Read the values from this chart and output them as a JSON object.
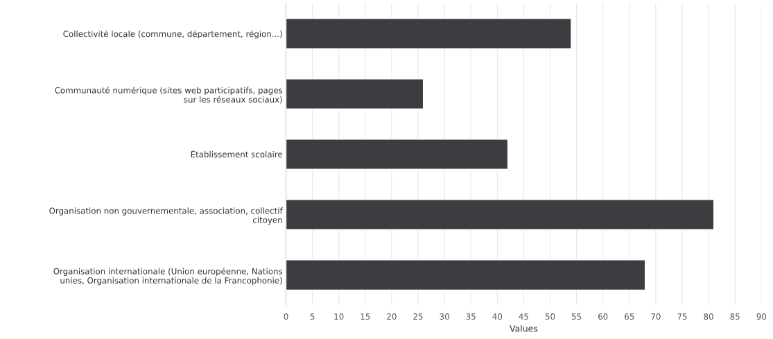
{
  "chart_data": {
    "type": "bar",
    "orientation": "horizontal",
    "categories": [
      "Collectivité locale (commune, département, région...)",
      "Communauté numérique (sites web participatifs, pages\nsur les réseaux sociaux)",
      "Établissement scolaire",
      "Organisation non gouvernementale, association, collectif\ncitoyen",
      "Organisation internationale (Union européenne, Nations\nunies, Organisation internationale de la Francophonie)"
    ],
    "values": [
      54,
      26,
      42,
      81,
      68
    ],
    "color": "#3d3c40",
    "xlabel": "Values",
    "xlim": [
      0,
      90
    ],
    "xticks": [
      0,
      5,
      10,
      15,
      20,
      25,
      30,
      35,
      40,
      45,
      50,
      55,
      60,
      65,
      70,
      75,
      80,
      85,
      90
    ],
    "grid": "x",
    "legend": false
  }
}
